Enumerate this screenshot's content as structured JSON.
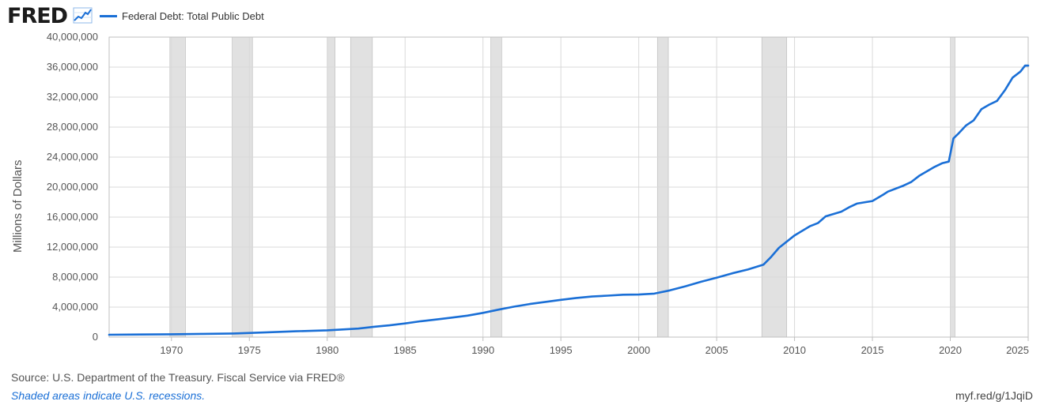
{
  "header": {
    "logo_text": "FRED",
    "logo_icon": "line-chart-icon",
    "legend_label": "Federal Debt: Total Public Debt"
  },
  "colors": {
    "series": "#1a6fd6",
    "recession": "#e1e1e1",
    "grid": "#d9d9d9",
    "plot_border": "#bfbfbf"
  },
  "footer": {
    "source": "Source: U.S. Department of the Treasury. Fiscal Service via FRED®",
    "note": "Shaded areas indicate U.S. recessions.",
    "url": "myf.red/g/1JqiD"
  },
  "chart_data": {
    "type": "line",
    "title": "",
    "xlabel": "",
    "ylabel": "Millions of Dollars",
    "xlim": [
      1966.0,
      2025.0
    ],
    "ylim": [
      0,
      40000000
    ],
    "grid": true,
    "legend": "top-left",
    "y_ticks": [
      0,
      4000000,
      8000000,
      12000000,
      16000000,
      20000000,
      24000000,
      28000000,
      32000000,
      36000000,
      40000000
    ],
    "y_tick_labels": [
      "0",
      "4,000,000",
      "8,000,000",
      "12,000,000",
      "16,000,000",
      "20,000,000",
      "24,000,000",
      "28,000,000",
      "32,000,000",
      "36,000,000",
      "40,000,000"
    ],
    "x_ticks": [
      1970,
      1975,
      1980,
      1985,
      1990,
      1995,
      2000,
      2005,
      2010,
      2015,
      2020,
      2025
    ],
    "x_tick_labels": [
      "1970",
      "1975",
      "1980",
      "1985",
      "1990",
      "1995",
      "2000",
      "2005",
      "2010",
      "2015",
      "2020",
      "2025"
    ],
    "recessions": [
      [
        1969.9,
        1970.9
      ],
      [
        1973.9,
        1975.2
      ],
      [
        1980.0,
        1980.5
      ],
      [
        1981.5,
        1982.9
      ],
      [
        1990.5,
        1991.2
      ],
      [
        2001.2,
        2001.9
      ],
      [
        2007.9,
        2009.5
      ],
      [
        2020.0,
        2020.3
      ]
    ],
    "series": [
      {
        "name": "Federal Debt: Total Public Debt",
        "x": [
          1966.0,
          1968.0,
          1970.0,
          1972.0,
          1974.0,
          1976.0,
          1978.0,
          1980.0,
          1982.0,
          1983.0,
          1984.0,
          1985.0,
          1986.0,
          1987.0,
          1988.0,
          1989.0,
          1990.0,
          1991.0,
          1992.0,
          1993.0,
          1994.0,
          1995.0,
          1996.0,
          1997.0,
          1998.0,
          1999.0,
          2000.0,
          2001.0,
          2002.0,
          2003.0,
          2004.0,
          2005.0,
          2006.0,
          2007.0,
          2008.0,
          2008.5,
          2009.0,
          2010.0,
          2011.0,
          2011.5,
          2012.0,
          2013.0,
          2013.5,
          2014.0,
          2015.0,
          2015.7,
          2016.0,
          2017.0,
          2017.5,
          2018.0,
          2019.0,
          2019.5,
          2019.9,
          2020.2,
          2020.5,
          2021.0,
          2021.5,
          2022.0,
          2022.5,
          2023.0,
          2023.5,
          2024.0,
          2024.5,
          2024.8,
          2025.0
        ],
        "values": [
          320000,
          350000,
          380000,
          430000,
          480000,
          620000,
          780000,
          900000,
          1140000,
          1380000,
          1570000,
          1820000,
          2120000,
          2350000,
          2600000,
          2860000,
          3230000,
          3660000,
          4060000,
          4410000,
          4690000,
          4970000,
          5220000,
          5410000,
          5530000,
          5650000,
          5670000,
          5800000,
          6230000,
          6780000,
          7380000,
          7930000,
          8510000,
          9010000,
          9650000,
          10700000,
          11900000,
          13560000,
          14800000,
          15200000,
          16100000,
          16730000,
          17300000,
          17800000,
          18150000,
          19000000,
          19400000,
          20200000,
          20700000,
          21500000,
          22700000,
          23200000,
          23400000,
          26500000,
          27100000,
          28200000,
          28900000,
          30400000,
          31000000,
          31500000,
          32900000,
          34600000,
          35400000,
          36200000,
          36200000
        ]
      }
    ]
  }
}
